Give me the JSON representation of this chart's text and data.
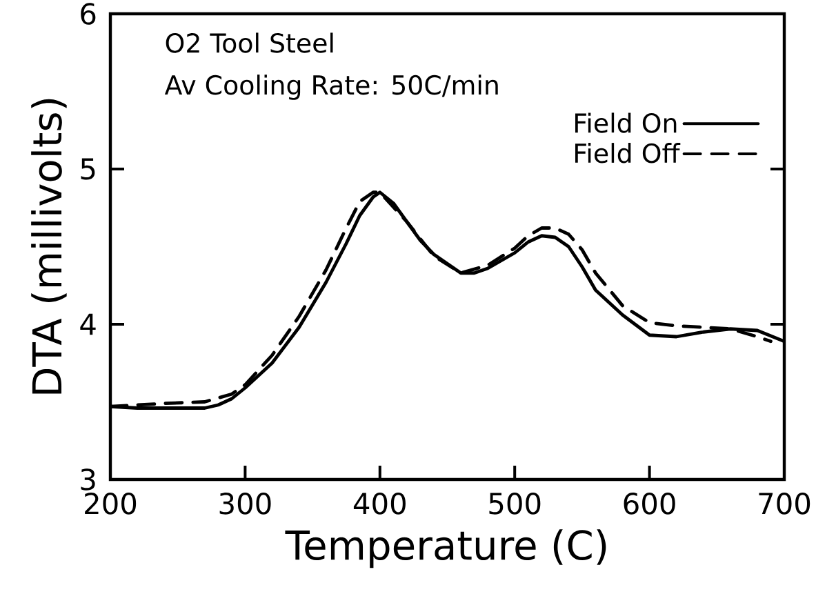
{
  "chart_data": {
    "type": "line",
    "xlabel": "Temperature (C)",
    "ylabel": "DTA (millivolts)",
    "annotations": [
      "O2 Tool Steel",
      "Av Cooling Rate: 50C/min"
    ],
    "xlim": [
      200,
      700
    ],
    "ylim": [
      3,
      6
    ],
    "xticks": [
      200,
      300,
      400,
      500,
      600,
      700
    ],
    "yticks": [
      3,
      4,
      5,
      6
    ],
    "grid": false,
    "legend": "top right",
    "marker": "none",
    "series": [
      {
        "name": "Field On",
        "color": "#000000",
        "line_style": "solid",
        "x": [
          200,
          220,
          240,
          260,
          270,
          280,
          290,
          300,
          320,
          340,
          360,
          375,
          385,
          395,
          400,
          410,
          420,
          430,
          440,
          460,
          470,
          480,
          500,
          510,
          520,
          530,
          540,
          550,
          560,
          580,
          600,
          620,
          640,
          660,
          680,
          700
        ],
        "values": [
          3.47,
          3.46,
          3.46,
          3.46,
          3.46,
          3.48,
          3.52,
          3.59,
          3.75,
          3.98,
          4.27,
          4.52,
          4.7,
          4.82,
          4.85,
          4.78,
          4.66,
          4.54,
          4.45,
          4.33,
          4.33,
          4.36,
          4.46,
          4.53,
          4.57,
          4.56,
          4.5,
          4.37,
          4.22,
          4.06,
          3.93,
          3.92,
          3.95,
          3.97,
          3.96,
          3.89
        ]
      },
      {
        "name": "Field Off",
        "color": "#000000",
        "line_style": "dashed",
        "x": [
          200,
          240,
          270,
          290,
          300,
          320,
          340,
          360,
          375,
          385,
          395,
          400,
          420,
          440,
          460,
          480,
          500,
          510,
          520,
          530,
          540,
          550,
          560,
          580,
          600,
          620,
          640,
          660,
          680,
          690
        ],
        "values": [
          3.47,
          3.49,
          3.5,
          3.55,
          3.61,
          3.8,
          4.05,
          4.35,
          4.62,
          4.79,
          4.85,
          4.85,
          4.66,
          4.44,
          4.33,
          4.38,
          4.49,
          4.57,
          4.62,
          4.62,
          4.58,
          4.48,
          4.33,
          4.12,
          4.01,
          3.99,
          3.98,
          3.97,
          3.92,
          3.89
        ]
      }
    ]
  }
}
